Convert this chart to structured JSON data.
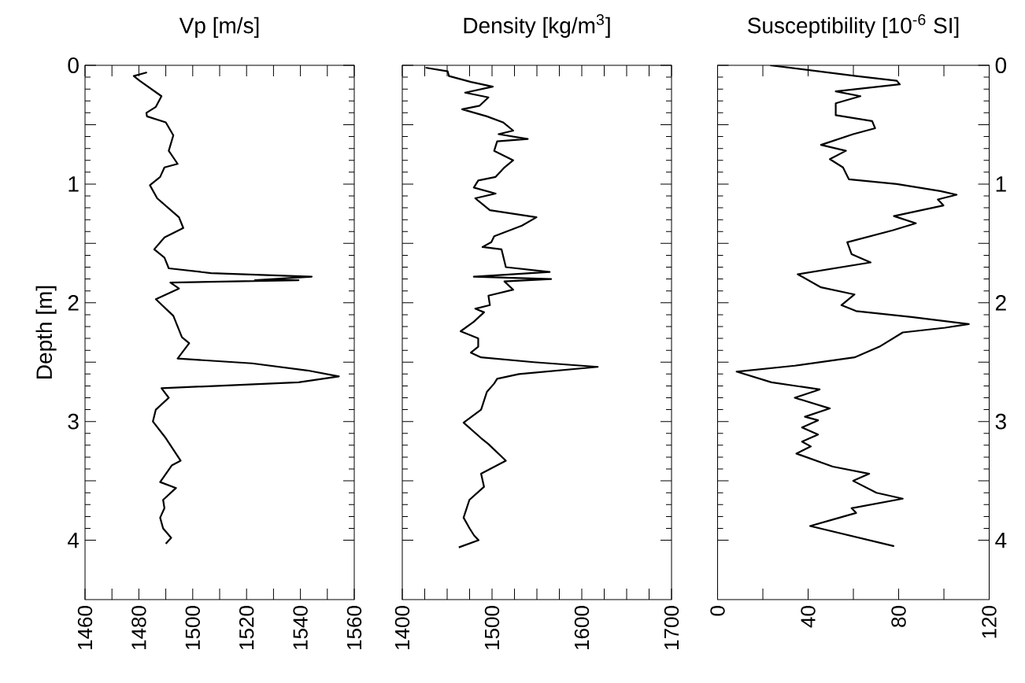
{
  "chart_data": [
    {
      "type": "line",
      "title": "Vp [m/s]",
      "ylabel": "Depth [m]",
      "xlim": [
        1460,
        1560
      ],
      "xticks": [
        1460,
        {
          "value": 1470,
          "label": null
        },
        1480,
        {
          "value": 1490,
          "label": null
        },
        1500,
        {
          "value": 1510,
          "label": null
        },
        1520,
        {
          "value": 1530,
          "label": null
        },
        1540,
        {
          "value": 1550,
          "label": null
        },
        1560
      ],
      "ylim": [
        4.5,
        0
      ],
      "yticks": [
        0,
        {
          "value": 0.5,
          "label": null
        },
        1,
        {
          "value": 1.5,
          "label": null
        },
        2,
        {
          "value": 2.5,
          "label": null
        },
        3,
        {
          "value": 3.5,
          "label": null
        },
        4
      ],
      "marker": "none",
      "line_style": "solid",
      "series": [
        {
          "color": "#000000",
          "x": [
            1483.0,
            1478.1,
            1480.3,
            1488.4,
            1486.3,
            1482.8,
            1483.0,
            1490.0,
            1492.8,
            1491.1,
            1494.4,
            1489.5,
            1487.9,
            1484.1,
            1486.8,
            1494.9,
            1496.5,
            1489.5,
            1485.7,
            1489.5,
            1491.1,
            1506.8,
            1544.2,
            1523.1,
            1539.3,
            1491.7,
            1494.9,
            1486.3,
            1492.8,
            1496.0,
            1498.7,
            1494.4,
            1522.0,
            1542.6,
            1554.3,
            1539.3,
            1488.4,
            1491.1,
            1486.3,
            1485.2,
            1490.0,
            1495.5,
            1492.2,
            1487.9,
            1493.8,
            1489.0,
            1489.5,
            1487.9,
            1489.0,
            1492.0,
            1490.0
          ],
          "values": [
            0.06,
            0.09,
            0.13,
            0.26,
            0.35,
            0.4,
            0.43,
            0.48,
            0.59,
            0.72,
            0.83,
            0.86,
            0.94,
            1.01,
            1.12,
            1.28,
            1.37,
            1.45,
            1.55,
            1.62,
            1.71,
            1.75,
            1.78,
            1.81,
            1.81,
            1.83,
            1.88,
            1.97,
            2.11,
            2.29,
            2.34,
            2.47,
            2.51,
            2.57,
            2.62,
            2.67,
            2.72,
            2.8,
            2.9,
            3.0,
            3.14,
            3.33,
            3.37,
            3.51,
            3.56,
            3.66,
            3.73,
            3.81,
            3.9,
            3.98,
            4.03
          ]
        }
      ]
    },
    {
      "type": "line",
      "title": "Density [kg/m$^{3}$]",
      "xlim": [
        1400,
        1700
      ],
      "xticks": [
        1400,
        {
          "value": 1425,
          "label": null
        },
        {
          "value": 1450,
          "label": null
        },
        {
          "value": 1475,
          "label": null
        },
        1500,
        {
          "value": 1525,
          "label": null
        },
        {
          "value": 1550,
          "label": null
        },
        {
          "value": 1575,
          "label": null
        },
        1600,
        {
          "value": 1625,
          "label": null
        },
        {
          "value": 1650,
          "label": null
        },
        {
          "value": 1675,
          "label": null
        },
        1700
      ],
      "ylim": [
        4.5,
        0
      ],
      "yticks": [
        0,
        {
          "value": 0.5,
          "label": null
        },
        1,
        {
          "value": 1.5,
          "label": null
        },
        2,
        {
          "value": 2.5,
          "label": null
        },
        3,
        {
          "value": 3.5,
          "label": null
        },
        4
      ],
      "tick_labels": "x",
      "marker": "none",
      "line_style": "solid",
      "series": [
        {
          "color": "#000000",
          "x": [
            1426,
            1450.5,
            1452,
            1476.4,
            1500.8,
            1470,
            1496,
            1486.2,
            1466.7,
            1494.3,
            1512.2,
            1523.6,
            1507.3,
            1539.8,
            1505.7,
            1502.4,
            1523.6,
            1513.8,
            1504,
            1484.6,
            1479.7,
            1504,
            1481.3,
            1497.6,
            1549.5,
            1533.3,
            1502.4,
            1499.2,
            1489.4,
            1510.6,
            1515.4,
            1564.2,
            1479.7,
            1565.8,
            1513.8,
            1523.6,
            1496,
            1497.6,
            1481.3,
            1491.1,
            1479.7,
            1465,
            1484.6,
            1484.6,
            1476.4,
            1487.8,
            1546.3,
            1617.8,
            1530.1,
            1505.7,
            1502.4,
            1494.3,
            1487.8,
            1468.3,
            1487.8,
            1496,
            1515.4,
            1487.8,
            1491.1,
            1474.8,
            1468.3,
            1475,
            1480,
            1485,
            1463
          ],
          "values": [
            0.02,
            0.05,
            0.09,
            0.14,
            0.18,
            0.23,
            0.27,
            0.34,
            0.37,
            0.43,
            0.48,
            0.55,
            0.58,
            0.62,
            0.64,
            0.72,
            0.8,
            0.86,
            0.94,
            0.97,
            1.03,
            1.08,
            1.12,
            1.22,
            1.28,
            1.35,
            1.44,
            1.49,
            1.53,
            1.55,
            1.7,
            1.74,
            1.78,
            1.8,
            1.82,
            1.89,
            1.94,
            2.02,
            2.05,
            2.08,
            2.16,
            2.24,
            2.3,
            2.37,
            2.42,
            2.46,
            2.5,
            2.54,
            2.6,
            2.64,
            2.68,
            2.75,
            2.9,
            3.01,
            3.14,
            3.19,
            3.33,
            3.44,
            3.55,
            3.66,
            3.81,
            3.9,
            3.96,
            4.0,
            4.06
          ]
        }
      ]
    },
    {
      "type": "line",
      "title": "Susceptibility [10$^{-6}$ SI]",
      "xlim": [
        0,
        120
      ],
      "xticks": [
        0,
        {
          "value": 20,
          "label": null
        },
        40,
        {
          "value": 60,
          "label": null
        },
        80,
        {
          "value": 100,
          "label": null
        },
        120
      ],
      "y2lim": [
        4.5,
        0
      ],
      "y2ticks": [
        0,
        {
          "value": 0.5,
          "label": null
        },
        1,
        {
          "value": 1.5,
          "label": null
        },
        2,
        {
          "value": 2.5,
          "label": null
        },
        3,
        {
          "value": 3.5,
          "label": null
        },
        4
      ],
      "marker": "none",
      "line_style": "solid",
      "series": [
        {
          "color": "#000000",
          "axis": "y2",
          "x": [
            23.2,
            61.2,
            79.2,
            80.5,
            52.2,
            63.1,
            52.2,
            52.2,
            68.3,
            69.6,
            59.9,
            45.7,
            56.7,
            49.6,
            55.4,
            58.0,
            79.2,
            98.5,
            105.6,
            97.3,
            99.8,
            77.9,
            87.6,
            77.3,
            57.3,
            59.2,
            67.6,
            35.4,
            45.7,
            60.5,
            54.7,
            61.2,
            85.7,
            111,
            100.5,
            81.8,
            71.5,
            60.5,
            34.1,
            8.4,
            23.8,
            45.1,
            34.1,
            49.6,
            38.6,
            44.4,
            37.3,
            44.4,
            37.3,
            41.2,
            34.8,
            50.9,
            67.0,
            59.9,
            70.2,
            81.8,
            59.2,
            61.2,
            50.2,
            40.9,
            78
          ],
          "values": [
            0.0,
            0.09,
            0.13,
            0.16,
            0.22,
            0.26,
            0.32,
            0.42,
            0.47,
            0.53,
            0.58,
            0.67,
            0.72,
            0.79,
            0.86,
            0.96,
            1.0,
            1.06,
            1.09,
            1.13,
            1.18,
            1.27,
            1.33,
            1.39,
            1.49,
            1.59,
            1.66,
            1.76,
            1.87,
            1.93,
            2.02,
            2.07,
            2.12,
            2.18,
            2.21,
            2.25,
            2.37,
            2.46,
            2.53,
            2.58,
            2.67,
            2.73,
            2.8,
            2.89,
            2.96,
            2.99,
            3.05,
            3.11,
            3.17,
            3.21,
            3.27,
            3.38,
            3.44,
            3.5,
            3.6,
            3.65,
            3.73,
            3.77,
            3.83,
            3.88,
            4.05
          ]
        }
      ]
    }
  ]
}
